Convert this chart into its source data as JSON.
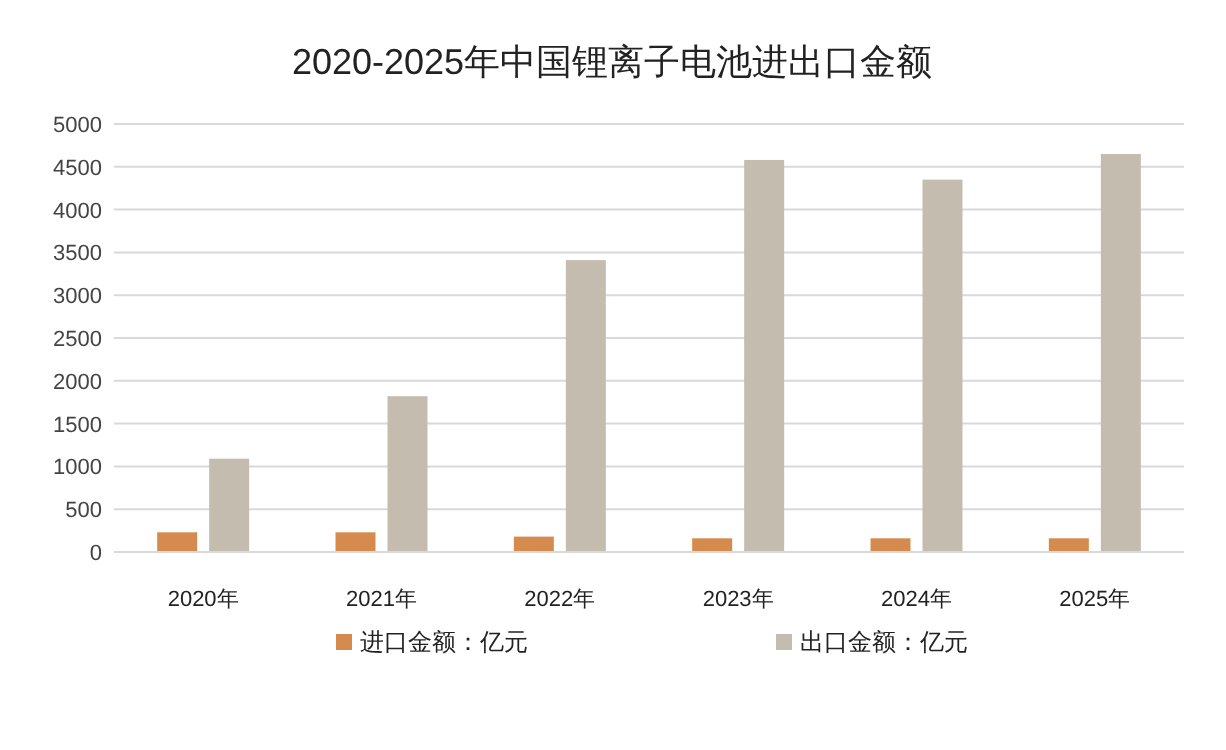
{
  "chart_data": {
    "type": "bar",
    "title": "2020-2025年中国锂离子电池进出口金额",
    "categories": [
      "2020年",
      "2021年",
      "2022年",
      "2023年",
      "2024年",
      "2025年"
    ],
    "series": [
      {
        "name": "进口金额：亿元",
        "color": "#d58b4e",
        "values": [
          230,
          230,
          180,
          160,
          160,
          160
        ]
      },
      {
        "name": "出口金额：亿元",
        "color": "#c5bcb0",
        "values": [
          1090,
          1820,
          3410,
          4580,
          4350,
          4650
        ]
      }
    ],
    "ylim": [
      0,
      5000
    ],
    "yticks": [
      0,
      500,
      1000,
      1500,
      2000,
      2500,
      3000,
      3500,
      4000,
      4500,
      5000
    ],
    "grid": "y",
    "legend": "bottom"
  }
}
